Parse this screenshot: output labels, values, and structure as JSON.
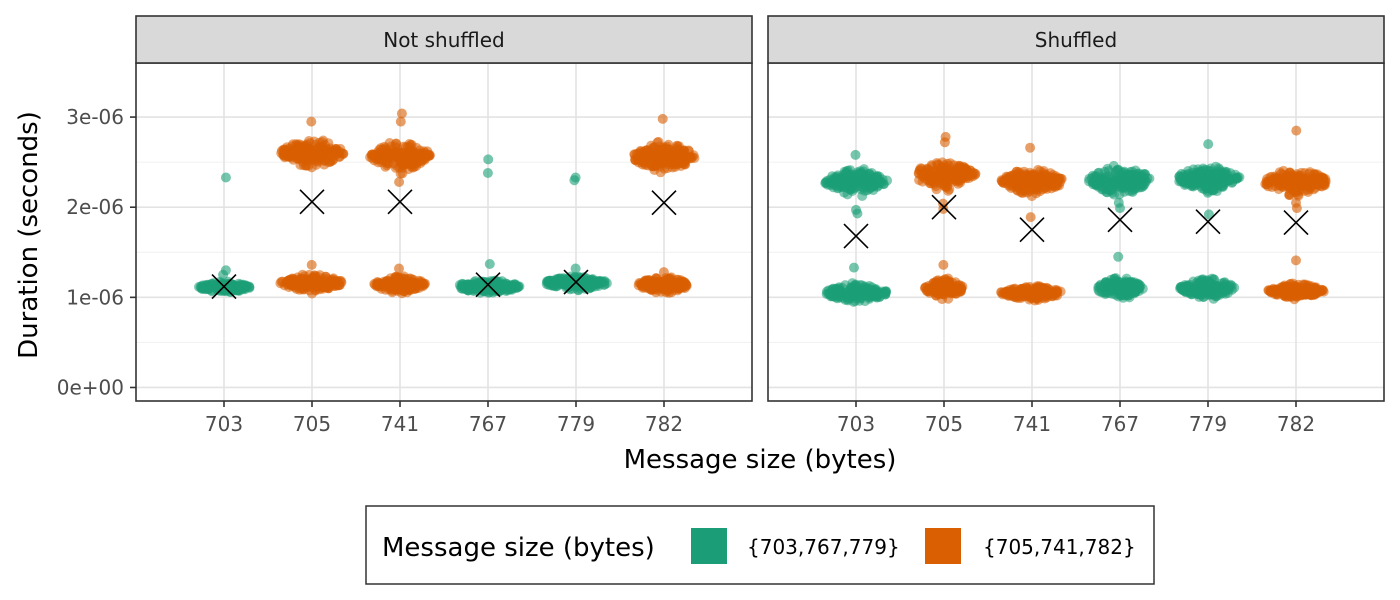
{
  "chart_data": {
    "type": "scatter",
    "description_style": "jittered beeswarm per category, faceted, with mean marker (X)",
    "xlabel": "Message size (bytes)",
    "ylabel": "Duration (seconds)",
    "categories": [
      "703",
      "705",
      "741",
      "767",
      "779",
      "782"
    ],
    "y_ticks": [
      {
        "value": 0,
        "label": "0e+00"
      },
      {
        "value": 1e-06,
        "label": "1e-06"
      },
      {
        "value": 2e-06,
        "label": "2e-06"
      },
      {
        "value": 3e-06,
        "label": "3e-06"
      }
    ],
    "ylim": [
      -1.5e-07,
      3.6e-06
    ],
    "grid": true,
    "legend": {
      "title": "Message size (bytes)",
      "position": "bottom",
      "items": [
        {
          "label": "{703,767,779}",
          "color": "#1B9E77"
        },
        {
          "label": "{705,741,782}",
          "color": "#D95F02"
        }
      ]
    },
    "group_colors": {
      "A": "#1B9E77",
      "B": "#D95F02"
    },
    "panels": [
      {
        "title": "Not shuffled",
        "groups": [
          {
            "category": "703",
            "group": "A",
            "clusters": [
              {
                "center": 1.11e-06,
                "half_height": 1e-07,
                "half_width": 0.3,
                "n": 160
              }
            ],
            "outliers": [
              2.33e-06,
              1.3e-06,
              1.25e-06
            ],
            "mean": 1.12e-06
          },
          {
            "category": "705",
            "group": "B",
            "clusters": [
              {
                "center": 2.6e-06,
                "half_height": 2.5e-07,
                "half_width": 0.36,
                "n": 180
              },
              {
                "center": 1.16e-06,
                "half_height": 1.5e-07,
                "half_width": 0.36,
                "n": 170
              }
            ],
            "outliers": [
              2.95e-06,
              1.36e-06
            ],
            "mean": 2.06e-06
          },
          {
            "category": "741",
            "group": "B",
            "clusters": [
              {
                "center": 2.57e-06,
                "half_height": 2.5e-07,
                "half_width": 0.36,
                "n": 180
              },
              {
                "center": 1.14e-06,
                "half_height": 1.4e-07,
                "half_width": 0.3,
                "n": 160
              }
            ],
            "outliers": [
              3.04e-06,
              2.95e-06,
              2.28e-06,
              1.32e-06
            ],
            "mean": 2.06e-06
          },
          {
            "category": "767",
            "group": "A",
            "clusters": [
              {
                "center": 1.12e-06,
                "half_height": 1.2e-07,
                "half_width": 0.36,
                "n": 170
              }
            ],
            "outliers": [
              2.53e-06,
              2.38e-06,
              1.37e-06
            ],
            "mean": 1.14e-06
          },
          {
            "category": "779",
            "group": "A",
            "clusters": [
              {
                "center": 1.16e-06,
                "half_height": 1.2e-07,
                "half_width": 0.36,
                "n": 170
              }
            ],
            "outliers": [
              2.33e-06,
              2.3e-06,
              1.32e-06
            ],
            "mean": 1.17e-06
          },
          {
            "category": "782",
            "group": "B",
            "clusters": [
              {
                "center": 2.56e-06,
                "half_height": 2.5e-07,
                "half_width": 0.36,
                "n": 180
              },
              {
                "center": 1.14e-06,
                "half_height": 1.4e-07,
                "half_width": 0.3,
                "n": 160
              }
            ],
            "outliers": [
              2.98e-06,
              1.28e-06
            ],
            "mean": 2.05e-06
          }
        ]
      },
      {
        "title": "Shuffled",
        "groups": [
          {
            "category": "703",
            "group": "A",
            "clusters": [
              {
                "center": 2.28e-06,
                "half_height": 2.2e-07,
                "half_width": 0.36,
                "n": 170
              },
              {
                "center": 1.05e-06,
                "half_height": 1.5e-07,
                "half_width": 0.36,
                "n": 170
              }
            ],
            "outliers": [
              2.58e-06,
              1.97e-06,
              1.93e-06,
              1.33e-06
            ],
            "mean": 1.68e-06
          },
          {
            "category": "705",
            "group": "B",
            "clusters": [
              {
                "center": 2.36e-06,
                "half_height": 2.4e-07,
                "half_width": 0.36,
                "n": 180
              },
              {
                "center": 1.1e-06,
                "half_height": 1.7e-07,
                "half_width": 0.22,
                "n": 130
              }
            ],
            "outliers": [
              2.78e-06,
              2.72e-06,
              2.04e-06,
              1.98e-06,
              1.36e-06
            ],
            "mean": 2e-06
          },
          {
            "category": "741",
            "group": "B",
            "clusters": [
              {
                "center": 2.29e-06,
                "half_height": 2.2e-07,
                "half_width": 0.36,
                "n": 170
              },
              {
                "center": 1.05e-06,
                "half_height": 1.2e-07,
                "half_width": 0.36,
                "n": 170
              }
            ],
            "outliers": [
              2.66e-06,
              1.89e-06
            ],
            "mean": 1.75e-06
          },
          {
            "category": "767",
            "group": "A",
            "clusters": [
              {
                "center": 2.3e-06,
                "half_height": 2.6e-07,
                "half_width": 0.36,
                "n": 180
              },
              {
                "center": 1.1e-06,
                "half_height": 1.9e-07,
                "half_width": 0.26,
                "n": 150
              }
            ],
            "outliers": [
              2.05e-06,
              1.99e-06,
              1.45e-06
            ],
            "mean": 1.86e-06
          },
          {
            "category": "779",
            "group": "A",
            "clusters": [
              {
                "center": 2.32e-06,
                "half_height": 2.4e-07,
                "half_width": 0.36,
                "n": 180
              },
              {
                "center": 1.1e-06,
                "half_height": 1.7e-07,
                "half_width": 0.32,
                "n": 160
              }
            ],
            "outliers": [
              2.7e-06,
              2.16e-06,
              1.92e-06
            ],
            "mean": 1.84e-06
          },
          {
            "category": "782",
            "group": "B",
            "clusters": [
              {
                "center": 2.28e-06,
                "half_height": 2.4e-07,
                "half_width": 0.36,
                "n": 170
              },
              {
                "center": 1.07e-06,
                "half_height": 1.3e-07,
                "half_width": 0.32,
                "n": 160
              }
            ],
            "outliers": [
              2.85e-06,
              2.05e-06,
              1.99e-06,
              1.41e-06
            ],
            "mean": 1.83e-06
          }
        ]
      }
    ]
  }
}
